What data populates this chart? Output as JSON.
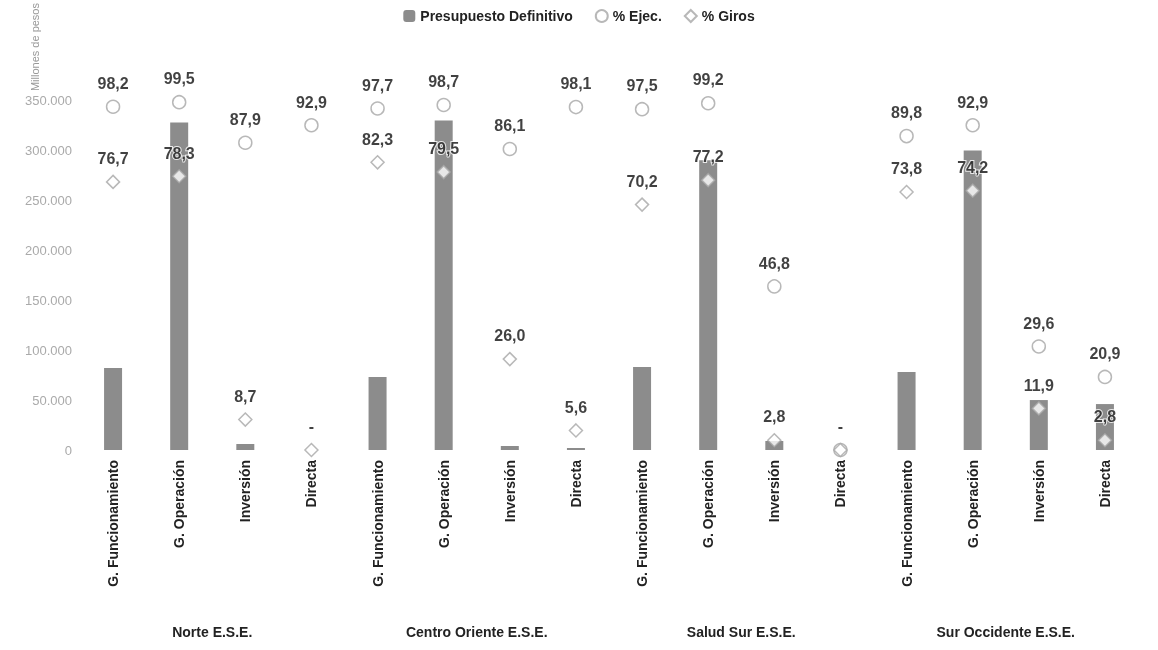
{
  "chart_data": {
    "type": "bar",
    "ylabel": "Millones de pesos",
    "legend": "top",
    "grid": false,
    "categories": [
      "G. Funcionamiento",
      "G. Operación",
      "Inversión",
      "Directa",
      "G. Funcionamiento",
      "G. Operación",
      "Inversión",
      "Directa",
      "G. Funcionamiento",
      "G. Operación",
      "Inversión",
      "Directa",
      "G. Funcionamiento",
      "G. Operación",
      "Inversión",
      "Directa"
    ],
    "annotations": [
      "Norte E.S.E.",
      "Centro Oriente E.S.E.",
      "Salud Sur E.S.E.",
      "Sur Occidente E.S.E."
    ],
    "ylim": [
      0,
      350000
    ],
    "yticks": [
      {
        "value": 0,
        "label": "0"
      },
      {
        "value": 50000,
        "label": "50.000"
      },
      {
        "value": 100000,
        "label": "100.000"
      },
      {
        "value": 150000,
        "label": "150.000"
      },
      {
        "value": 200000,
        "label": "200.000"
      },
      {
        "value": 250000,
        "label": "250.000"
      },
      {
        "value": 300000,
        "label": "300.000"
      },
      {
        "value": 350000,
        "label": "350.000"
      }
    ],
    "series": [
      {
        "name": "Presupuesto Definitivo",
        "color": "#8c8c8c",
        "values": [
          82000,
          328000,
          6000,
          null,
          73000,
          330000,
          4000,
          2000,
          83000,
          290000,
          9000,
          0,
          78000,
          300000,
          50000,
          46000
        ]
      },
      {
        "name": "% Ejec.",
        "type": "scatter",
        "axis": "y2",
        "marker": "circle",
        "color": "#a6a6a6",
        "values": [
          98.2,
          99.5,
          87.9,
          92.9,
          97.7,
          98.7,
          86.1,
          98.1,
          97.5,
          99.2,
          46.8,
          0,
          89.8,
          92.9,
          29.6,
          20.9
        ],
        "value_labels": [
          "98,2",
          "99,5",
          "87,9",
          "92,9",
          "97,7",
          "98,7",
          "86,1",
          "98,1",
          "97,5",
          "99,2",
          "46,8",
          "-",
          "89,8",
          "92,9",
          "29,6",
          "20,9"
        ]
      },
      {
        "name": "% Giros",
        "type": "scatter",
        "axis": "y2",
        "marker": "diamond",
        "color": "#a6a6a6",
        "values": [
          76.7,
          78.3,
          8.7,
          0,
          82.3,
          79.5,
          26.0,
          5.6,
          70.2,
          77.2,
          2.8,
          0,
          73.8,
          74.2,
          11.9,
          2.8
        ],
        "value_labels": [
          "76,7",
          "78,3",
          "8,7",
          "-",
          "82,3",
          "79,5",
          "26,0",
          "5,6",
          "70,2",
          "77,2",
          "2,8",
          null,
          "73,8",
          "74,2",
          "11,9",
          "2,8"
        ]
      }
    ]
  }
}
